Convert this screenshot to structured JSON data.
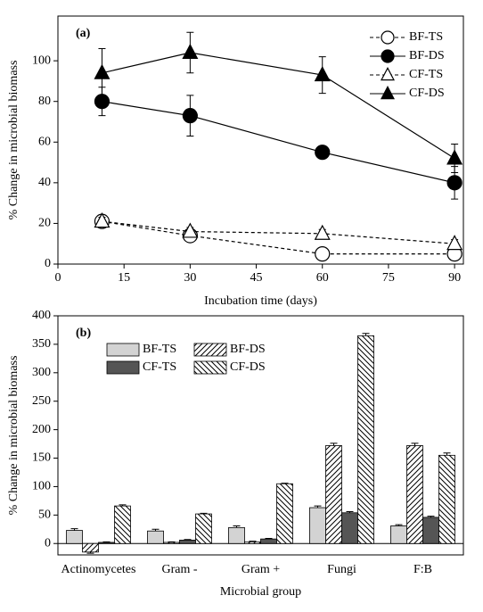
{
  "chart_data": [
    {
      "type": "line",
      "annotation": "(a)",
      "x_label": "Incubation time (days)",
      "y_label": "% Change in microbial biomass",
      "x": [
        10,
        30,
        60,
        90
      ],
      "xlim": [
        0,
        92
      ],
      "xticks": [
        0,
        15,
        30,
        45,
        60,
        75,
        90
      ],
      "ylim": [
        0,
        122
      ],
      "yticks": [
        0,
        20,
        40,
        60,
        80,
        100
      ],
      "legend": "upper right",
      "series": [
        {
          "name": "BF-TS",
          "color": "#000000",
          "marker": "circle",
          "filled": false,
          "dashed": true,
          "values": [
            21,
            14,
            5,
            5
          ],
          "errors": [
            3,
            2,
            2,
            3
          ]
        },
        {
          "name": "BF-DS",
          "color": "#000000",
          "marker": "circle",
          "filled": true,
          "dashed": false,
          "values": [
            80,
            73,
            55,
            40
          ],
          "errors": [
            7,
            10,
            3,
            8
          ]
        },
        {
          "name": "CF-TS",
          "color": "#000000",
          "marker": "triangle",
          "filled": false,
          "dashed": true,
          "values": [
            21,
            16,
            15,
            10
          ],
          "errors": [
            2,
            2,
            2,
            2
          ]
        },
        {
          "name": "CF-DS",
          "color": "#000000",
          "marker": "triangle",
          "filled": true,
          "dashed": false,
          "values": [
            94,
            104,
            93,
            52
          ],
          "errors": [
            12,
            10,
            9,
            7
          ]
        }
      ]
    },
    {
      "type": "bar",
      "annotation": "(b)",
      "x_label": "Microbial group",
      "y_label": "% Change in microbial biomass",
      "categories": [
        "Actinomycetes",
        "Gram -",
        "Gram +",
        "Fungi",
        "F:B"
      ],
      "ylim": [
        -20,
        400
      ],
      "yticks": [
        0,
        50,
        100,
        150,
        200,
        250,
        300,
        350,
        400
      ],
      "legend": "upper left",
      "series": [
        {
          "name": "BF-TS",
          "color": "#d3d3d3",
          "hatch": "none",
          "values": [
            23,
            22,
            28,
            63,
            31
          ],
          "errors": [
            3,
            3,
            3,
            3,
            2
          ]
        },
        {
          "name": "BF-DS",
          "color": "#ffffff",
          "hatch": "up",
          "values": [
            -15,
            2,
            3,
            172,
            172
          ],
          "errors": [
            2,
            1,
            1,
            4,
            4
          ]
        },
        {
          "name": "CF-TS",
          "color": "#555555",
          "hatch": "none",
          "values": [
            2,
            6,
            8,
            54,
            46
          ],
          "errors": [
            1,
            1,
            1,
            2,
            2
          ]
        },
        {
          "name": "CF-DS",
          "color": "#ffffff",
          "hatch": "down",
          "values": [
            66,
            52,
            105,
            365,
            155
          ],
          "errors": [
            2,
            1,
            1,
            4,
            4
          ]
        }
      ]
    }
  ]
}
